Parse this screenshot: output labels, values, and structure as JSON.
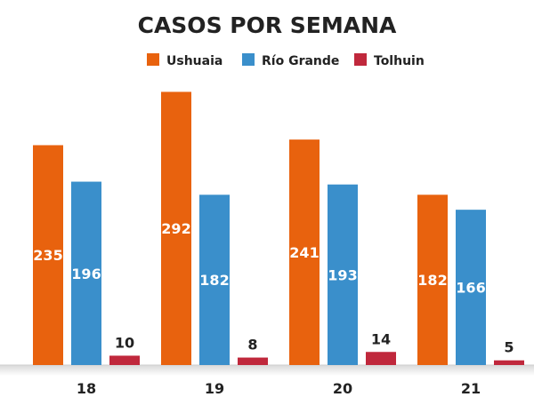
{
  "chart_data": {
    "type": "bar",
    "title": "CASOS POR SEMANA",
    "categories": [
      "18",
      "19",
      "20",
      "21"
    ],
    "series": [
      {
        "name": "Ushuaia",
        "values": [
          235,
          292,
          241,
          182
        ],
        "color": "#e8620e"
      },
      {
        "name": "Río Grande",
        "values": [
          196,
          182,
          193,
          166
        ],
        "color": "#3a8fcb"
      },
      {
        "name": "Tolhuin",
        "values": [
          10,
          8,
          14,
          5
        ],
        "color": "#c0283c"
      }
    ],
    "ylim": [
      0,
      300
    ],
    "grid": false,
    "legend_position": "top"
  }
}
